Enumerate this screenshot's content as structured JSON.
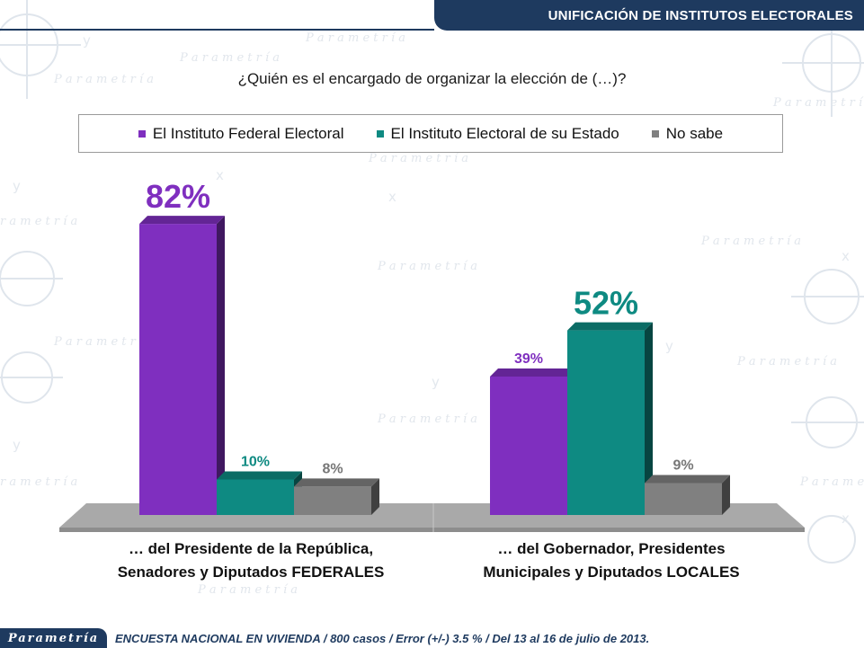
{
  "header": {
    "title": "UNIFICACIÓN DE INSTITUTOS ELECTORALES"
  },
  "question": "¿Quién es el encargado de organizar la elección de (…)?",
  "legend": [
    {
      "label": "El Instituto Federal Electoral",
      "color": "#7f2fbf"
    },
    {
      "label": "El Instituto Electoral de su Estado",
      "color": "#0e8a82"
    },
    {
      "label": "No sabe",
      "color": "#808080"
    }
  ],
  "chart_data": {
    "type": "bar",
    "title": "¿Quién es el encargado de organizar la elección de (…)?",
    "categories": [
      "… del Presidente de la República, Senadores y Diputados FEDERALES",
      "… del Gobernador, Presidentes Municipales y Diputados LOCALES"
    ],
    "series": [
      {
        "name": "El Instituto Federal Electoral",
        "values": [
          82,
          39
        ]
      },
      {
        "name": "El Instituto Electoral de su Estado",
        "values": [
          10,
          52
        ]
      },
      {
        "name": "No sabe",
        "values": [
          8,
          9
        ]
      }
    ],
    "data_labels": [
      [
        "82%",
        "10%",
        "8%"
      ],
      [
        "39%",
        "52%",
        "9%"
      ]
    ],
    "unit": "%",
    "ylim": [
      0,
      100
    ],
    "grid": false,
    "legend_position": "top"
  },
  "group_labels": [
    {
      "line1": "… del Presidente de la República,",
      "line2": "Senadores y Diputados FEDERALES"
    },
    {
      "line1": "… del Gobernador, Presidentes",
      "line2": "Municipales y Diputados LOCALES"
    }
  ],
  "footer": {
    "logo": "Parametría",
    "note": "ENCUESTA NACIONAL EN VIVIENDA / 800 casos / Error (+/-) 3.5 % / Del 13 al 16 de julio de 2013."
  }
}
